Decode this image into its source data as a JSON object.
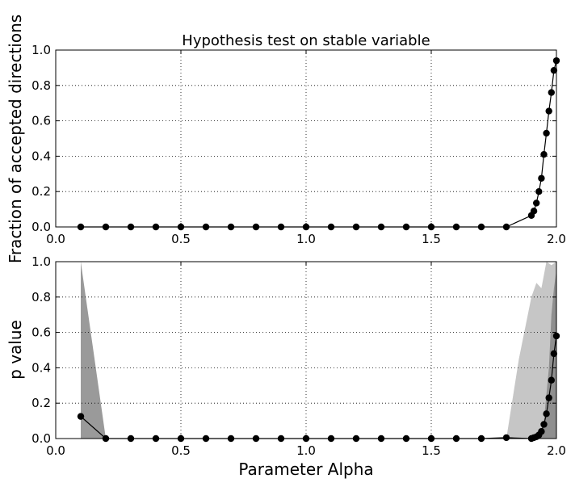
{
  "chart_data": [
    {
      "type": "line",
      "title": "Hypothesis test on stable variable",
      "xlabel": "",
      "ylabel": "Fraction of accepted directions",
      "xlim": [
        0.0,
        2.0
      ],
      "ylim": [
        0.0,
        1.0
      ],
      "grid": true,
      "xticks": [
        "0.0",
        "0.5",
        "1.0",
        "1.5",
        "2.0"
      ],
      "yticks": [
        "0.0",
        "0.2",
        "0.4",
        "0.6",
        "0.8",
        "1.0"
      ],
      "series": [
        {
          "x": [
            0.1,
            0.2,
            0.3,
            0.4,
            0.5,
            0.6,
            0.7,
            0.8,
            0.9,
            1.0,
            1.1,
            1.2,
            1.3,
            1.4,
            1.5,
            1.6,
            1.7,
            1.8,
            1.9,
            1.91,
            1.92,
            1.93,
            1.94,
            1.95,
            1.96,
            1.97,
            1.98,
            1.99,
            2.0
          ],
          "y": [
            0,
            0,
            0,
            0,
            0,
            0,
            0,
            0,
            0,
            0,
            0,
            0,
            0,
            0,
            0,
            0,
            0,
            0,
            0.065,
            0.09,
            0.135,
            0.2,
            0.275,
            0.41,
            0.53,
            0.655,
            0.76,
            0.885,
            0.94
          ]
        }
      ]
    },
    {
      "type": "line",
      "title": "",
      "xlabel": "Parameter Alpha",
      "ylabel": "p value",
      "xlim": [
        0.0,
        2.0
      ],
      "ylim": [
        0.0,
        1.0
      ],
      "grid": true,
      "xticks": [
        "0.0",
        "0.5",
        "1.0",
        "1.5",
        "2.0"
      ],
      "yticks": [
        "0.0",
        "0.2",
        "0.4",
        "0.6",
        "0.8",
        "1.0"
      ],
      "series": [
        {
          "x": [
            0.1,
            0.2,
            0.3,
            0.4,
            0.5,
            0.6,
            0.7,
            0.8,
            0.9,
            1.0,
            1.1,
            1.2,
            1.3,
            1.4,
            1.5,
            1.6,
            1.7,
            1.8,
            1.9,
            1.91,
            1.92,
            1.93,
            1.94,
            1.95,
            1.96,
            1.97,
            1.98,
            1.99,
            2.0
          ],
          "y": [
            0.125,
            0.0,
            0.0,
            0.0,
            0.0,
            0.0,
            0.0,
            0.0,
            0.0,
            0.0,
            0.0,
            0.0,
            0.0,
            0.0,
            0.0,
            0.0,
            0.0,
            0.005,
            0.0,
            0.005,
            0.01,
            0.02,
            0.04,
            0.08,
            0.14,
            0.23,
            0.33,
            0.48,
            0.58
          ]
        }
      ],
      "bands": [
        {
          "color": "#c6c6c6",
          "x": [
            1.8,
            1.85,
            1.9,
            1.92,
            1.94,
            1.96,
            1.98,
            2.0
          ],
          "upper": [
            0.0,
            0.45,
            0.8,
            0.88,
            0.85,
            1.0,
            0.98,
            1.0
          ]
        },
        {
          "color": "#9a9a9a",
          "x": [
            0.1,
            0.2
          ],
          "upper": [
            1.0,
            0.0
          ]
        },
        {
          "color": "#8f8f8f",
          "x": [
            1.93,
            1.95,
            1.97,
            1.98,
            1.99,
            2.0
          ],
          "upper": [
            0.0,
            0.1,
            0.4,
            0.7,
            0.85,
            0.95
          ]
        }
      ]
    }
  ]
}
